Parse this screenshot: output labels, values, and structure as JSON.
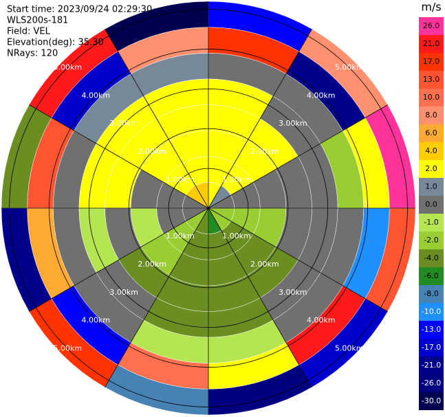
{
  "chart_data": {
    "type": "ppi",
    "info": [
      "Start time: 2023/09/24 02:29:30",
      "WLS200s-181",
      "Field: VEL",
      "Elevation(deg): 35.30",
      "NRays: 120"
    ],
    "unit": "m/s",
    "azimuths": [
      15,
      45,
      75,
      105,
      135,
      165,
      195,
      225,
      255,
      285,
      315,
      345
    ],
    "range_edges": [
      0,
      0.65,
      1.3,
      1.95,
      2.6,
      3.25,
      3.9,
      4.55,
      5.2
    ],
    "values": [
      [
        3,
        3,
        3,
        3,
        2,
        0,
        17,
        -13
      ],
      [
        1,
        2,
        3,
        3,
        0,
        0,
        -21,
        8
      ],
      [
        0,
        0,
        0,
        0,
        0,
        -2,
        2,
        26
      ],
      [
        -2,
        -2,
        -2,
        0,
        0,
        0,
        -10,
        13
      ],
      [
        -2,
        -3,
        -3,
        -3,
        0,
        0,
        21,
        -17
      ],
      [
        -6,
        -3,
        -3,
        -3,
        -3,
        -1,
        2,
        -26
      ],
      [
        -3,
        -3,
        -3,
        -3,
        -3,
        -1,
        10,
        -8
      ],
      [
        -2,
        -2,
        -2,
        -3,
        0,
        0,
        -13,
        17
      ],
      [
        0,
        0,
        -1,
        0,
        -1,
        0,
        6,
        -21
      ],
      [
        0,
        0,
        0,
        3,
        2,
        0,
        13,
        -4
      ],
      [
        4,
        3,
        3,
        3,
        2,
        1,
        -17,
        21
      ],
      [
        5,
        3,
        3,
        3,
        3,
        1,
        8,
        -30
      ]
    ],
    "rlim": [
      0,
      5.2
    ],
    "rticks": [
      {
        "value": 1,
        "label": "1.00km"
      },
      {
        "value": 2,
        "label": "2.00km"
      },
      {
        "value": 3,
        "label": "3.00km"
      },
      {
        "value": 4,
        "label": "4.00km"
      },
      {
        "value": 5,
        "label": "5.00km"
      }
    ],
    "colorbar": {
      "ticks": [
        {
          "value": 26,
          "label": "26.0"
        },
        {
          "value": 21,
          "label": "21.0"
        },
        {
          "value": 17,
          "label": "17.0"
        },
        {
          "value": 13,
          "label": "13.0"
        },
        {
          "value": 10,
          "label": "10.0"
        },
        {
          "value": 8,
          "label": "8.0"
        },
        {
          "value": 6,
          "label": "6.0"
        },
        {
          "value": 4,
          "label": "4.0"
        },
        {
          "value": 2,
          "label": "2.0"
        },
        {
          "value": 1,
          "label": "1.0"
        },
        {
          "value": 0,
          "label": "0.0"
        },
        {
          "value": -1,
          "label": "-1.0"
        },
        {
          "value": -2,
          "label": "-2.0"
        },
        {
          "value": -4,
          "label": "-4.0"
        },
        {
          "value": -6,
          "label": "-6.0"
        },
        {
          "value": -8,
          "label": "-8.0"
        },
        {
          "value": -10,
          "label": "-10.0"
        },
        {
          "value": -13,
          "label": "-13.0"
        },
        {
          "value": -17,
          "label": "-17.0"
        },
        {
          "value": -21,
          "label": "-21.0"
        },
        {
          "value": -26,
          "label": "-26.0"
        },
        {
          "value": -30,
          "label": "-30.0"
        }
      ],
      "colors": [
        "#ff3399",
        "#ff1a1a",
        "#ff3300",
        "#ff5533",
        "#ff7050",
        "#ff9070",
        "#ffaa33",
        "#ffcc00",
        "#ffff00",
        "#778899",
        "#707070",
        "#b5e550",
        "#9acd32",
        "#6b8e23",
        "#228b22",
        "#4682b4",
        "#1e90ff",
        "#0000ff",
        "#0000cd",
        "#00008b",
        "#000080",
        "#000050"
      ]
    }
  }
}
